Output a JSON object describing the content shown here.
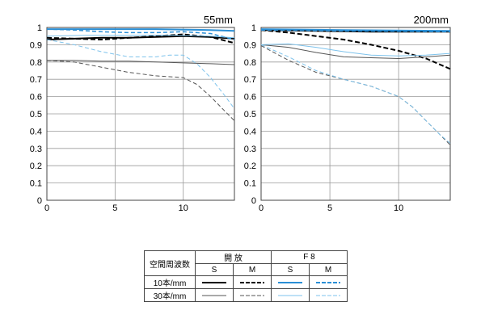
{
  "chart_data": [
    {
      "type": "line",
      "title": "55mm",
      "xlim": [
        0,
        13.75
      ],
      "ylim": [
        0,
        1
      ],
      "x_ticks": [
        0,
        5,
        10
      ],
      "y_ticks": [
        0,
        0.1,
        0.2,
        0.3,
        0.4,
        0.5,
        0.6,
        0.7,
        0.8,
        0.9,
        1
      ],
      "grid": true,
      "series": [
        {
          "name": "open-10-S",
          "color": "#000000",
          "dash": "solid",
          "width": 2,
          "x": [
            0,
            2,
            4,
            6,
            8,
            10,
            12,
            13.75
          ],
          "y": [
            0.93,
            0.935,
            0.94,
            0.94,
            0.945,
            0.95,
            0.945,
            0.935
          ]
        },
        {
          "name": "open-10-M",
          "color": "#000000",
          "dash": "dashed",
          "width": 2,
          "x": [
            0,
            2,
            4,
            6,
            8,
            10,
            12,
            13.75
          ],
          "y": [
            0.94,
            0.935,
            0.93,
            0.94,
            0.95,
            0.96,
            0.945,
            0.91
          ]
        },
        {
          "name": "open-30-S",
          "color": "#555555",
          "dash": "solid",
          "width": 1,
          "x": [
            0,
            2,
            4,
            6,
            8,
            10,
            12,
            13.75
          ],
          "y": [
            0.81,
            0.81,
            0.805,
            0.805,
            0.8,
            0.795,
            0.79,
            0.785
          ]
        },
        {
          "name": "open-30-M",
          "color": "#555555",
          "dash": "dashed",
          "width": 1,
          "x": [
            0,
            2,
            4,
            6,
            8,
            9,
            10,
            11,
            12,
            13,
            13.75
          ],
          "y": [
            0.81,
            0.8,
            0.77,
            0.74,
            0.72,
            0.715,
            0.71,
            0.67,
            0.6,
            0.52,
            0.46
          ]
        },
        {
          "name": "f8-10-S",
          "color": "#2a8fd6",
          "dash": "solid",
          "width": 2,
          "x": [
            0,
            4,
            8,
            12,
            13.75
          ],
          "y": [
            0.99,
            0.99,
            0.99,
            0.985,
            0.98
          ]
        },
        {
          "name": "f8-10-M",
          "color": "#2a8fd6",
          "dash": "dashed",
          "width": 1.5,
          "x": [
            0,
            2,
            4,
            6,
            8,
            10,
            12,
            13.75
          ],
          "y": [
            0.99,
            0.985,
            0.975,
            0.97,
            0.97,
            0.975,
            0.965,
            0.93
          ]
        },
        {
          "name": "f8-30-S",
          "color": "#7ec3ec",
          "dash": "solid",
          "width": 1,
          "x": [
            0,
            3,
            6,
            9,
            12,
            13.75
          ],
          "y": [
            0.95,
            0.955,
            0.955,
            0.955,
            0.95,
            0.94
          ]
        },
        {
          "name": "f8-30-M",
          "color": "#7ec3ec",
          "dash": "dashed",
          "width": 1,
          "x": [
            0,
            2,
            4,
            6,
            8,
            9,
            10,
            11,
            12,
            13,
            13.75
          ],
          "y": [
            0.93,
            0.9,
            0.86,
            0.83,
            0.83,
            0.84,
            0.84,
            0.79,
            0.71,
            0.61,
            0.53
          ]
        }
      ]
    },
    {
      "type": "line",
      "title": "200mm",
      "xlim": [
        0,
        13.75
      ],
      "ylim": [
        0,
        1
      ],
      "x_ticks": [
        0,
        5,
        10
      ],
      "y_ticks": [
        0,
        0.1,
        0.2,
        0.3,
        0.4,
        0.5,
        0.6,
        0.7,
        0.8,
        0.9,
        1
      ],
      "grid": true,
      "series": [
        {
          "name": "open-10-S",
          "color": "#000000",
          "dash": "solid",
          "width": 2,
          "x": [
            0,
            4,
            8,
            12,
            13.75
          ],
          "y": [
            0.985,
            0.98,
            0.975,
            0.975,
            0.975
          ]
        },
        {
          "name": "open-10-M",
          "color": "#000000",
          "dash": "dashed",
          "width": 2,
          "x": [
            0,
            2,
            4,
            6,
            8,
            10,
            12,
            13.75
          ],
          "y": [
            0.985,
            0.97,
            0.95,
            0.93,
            0.9,
            0.865,
            0.82,
            0.76
          ]
        },
        {
          "name": "open-30-S",
          "color": "#555555",
          "dash": "solid",
          "width": 1,
          "x": [
            0,
            2,
            4,
            6,
            8,
            10,
            12,
            13.75
          ],
          "y": [
            0.9,
            0.885,
            0.855,
            0.83,
            0.825,
            0.82,
            0.83,
            0.84
          ]
        },
        {
          "name": "open-30-M",
          "color": "#555555",
          "dash": "dashed",
          "width": 1,
          "x": [
            0,
            2,
            4,
            6,
            8,
            10,
            11,
            12,
            13,
            13.75
          ],
          "y": [
            0.895,
            0.81,
            0.74,
            0.7,
            0.66,
            0.6,
            0.54,
            0.46,
            0.38,
            0.32
          ]
        },
        {
          "name": "f8-10-S",
          "color": "#2a8fd6",
          "dash": "solid",
          "width": 2,
          "x": [
            0,
            6,
            13.75
          ],
          "y": [
            0.99,
            0.985,
            0.98
          ]
        },
        {
          "name": "f8-10-M",
          "color": "#2a8fd6",
          "dash": "dashed",
          "width": 1.5,
          "x": [
            0,
            6,
            13.75
          ],
          "y": [
            0.985,
            0.98,
            0.975
          ]
        },
        {
          "name": "f8-30-S",
          "color": "#7ec3ec",
          "dash": "solid",
          "width": 1,
          "x": [
            0,
            2,
            4,
            6,
            8,
            10,
            12,
            13.75
          ],
          "y": [
            0.9,
            0.905,
            0.885,
            0.86,
            0.84,
            0.835,
            0.84,
            0.85
          ]
        },
        {
          "name": "f8-30-M",
          "color": "#7ec3ec",
          "dash": "dashed",
          "width": 1,
          "x": [
            0,
            2,
            4,
            6,
            8,
            10,
            11,
            12,
            13,
            13.75
          ],
          "y": [
            0.9,
            0.83,
            0.75,
            0.7,
            0.66,
            0.6,
            0.54,
            0.46,
            0.38,
            0.33
          ]
        }
      ]
    }
  ],
  "legend": {
    "header_label": "空間周波数",
    "group_open": "開 放",
    "group_f8": "F 8",
    "col_s": "S",
    "col_m": "M",
    "row_10": "10本/mm",
    "row_30": "30本/mm",
    "samples": {
      "r10_open_s": {
        "color": "#000000",
        "dash": "solid",
        "width": 2
      },
      "r10_open_m": {
        "color": "#000000",
        "dash": "dashed",
        "width": 2
      },
      "r10_f8_s": {
        "color": "#2a8fd6",
        "dash": "solid",
        "width": 2
      },
      "r10_f8_m": {
        "color": "#2a8fd6",
        "dash": "dashed",
        "width": 2
      },
      "r30_open_s": {
        "color": "#555555",
        "dash": "solid",
        "width": 1
      },
      "r30_open_m": {
        "color": "#555555",
        "dash": "dashed",
        "width": 1
      },
      "r30_f8_s": {
        "color": "#7ec3ec",
        "dash": "solid",
        "width": 1
      },
      "r30_f8_m": {
        "color": "#7ec3ec",
        "dash": "dashed",
        "width": 1
      }
    }
  }
}
